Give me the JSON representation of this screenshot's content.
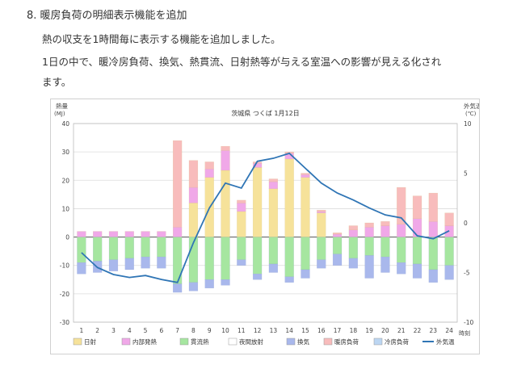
{
  "article": {
    "heading": "8. 暖房負荷の明細表示機能を追加",
    "line1": "熱の収支を1時間毎に表示する機能を追加しました。",
    "line2": "1日の中で、暖冷房負荷、換気、熱貫流、日射熱等が与える室温への影響が見える化され",
    "line3": "ます。"
  },
  "colors": {
    "日射": "#f6e29a",
    "内部発熱": "#f0a8e8",
    "貫流熱": "#a6e6a0",
    "夜間放射": "#ffffff",
    "換気": "#a9b8ec",
    "暖房負荷": "#f8bcbc",
    "冷房負荷": "#bcd6f2",
    "外気温": "#2f75b5"
  },
  "chart_data": {
    "type": "bar",
    "title": "茨城県 つくば 1月12日",
    "ylabel_left": "熱量",
    "ylabel_left_unit": "(MJ)",
    "ylabel_right": "外気温",
    "ylabel_right_unit": "(℃)",
    "xlabel": "時刻",
    "ylim_left": [
      -30,
      40
    ],
    "ylim_right": [
      -10,
      10
    ],
    "left_ticks": [
      "40",
      "30",
      "20",
      "10",
      "0",
      "-10",
      "-20",
      "-30"
    ],
    "right_ticks": [
      "10",
      "5",
      "0",
      "-5",
      "-10"
    ],
    "categories": [
      "1",
      "2",
      "3",
      "4",
      "5",
      "6",
      "7",
      "8",
      "9",
      "10",
      "11",
      "12",
      "13",
      "14",
      "15",
      "16",
      "17",
      "18",
      "19",
      "20",
      "21",
      "22",
      "23",
      "24"
    ],
    "positive_series": [
      {
        "name": "日射",
        "values": [
          0,
          0,
          0,
          0,
          0,
          0,
          0,
          12,
          21,
          23.5,
          9,
          24.5,
          17,
          27.5,
          21,
          8.5,
          0,
          0,
          0,
          0,
          0,
          0,
          0,
          0
        ]
      },
      {
        "name": "内部発熱",
        "values": [
          2,
          2,
          2,
          2,
          2,
          2,
          3.5,
          5.5,
          3,
          7,
          3,
          1.5,
          2.5,
          2,
          1,
          0.5,
          1,
          2.5,
          3.5,
          4,
          4.5,
          6.5,
          5.5,
          4
        ]
      },
      {
        "name": "暖房負荷",
        "values": [
          0,
          0,
          0,
          0,
          0,
          0,
          30.5,
          9.5,
          2.5,
          1.5,
          1,
          0.5,
          1,
          0.5,
          0.5,
          0.5,
          0.5,
          1.5,
          1.5,
          1.5,
          13,
          8,
          10,
          4.5
        ]
      }
    ],
    "negative_series": [
      {
        "name": "貫流熱",
        "values": [
          -9,
          -8.5,
          -8,
          -7.5,
          -7,
          -7,
          -16.5,
          -16,
          -15,
          -15,
          -8,
          -13,
          -9.5,
          -14,
          -11.5,
          -8,
          -6,
          -7.5,
          -6.5,
          -7,
          -9,
          -9.5,
          -11.5,
          -10
        ]
      },
      {
        "name": "換気",
        "values": [
          -4,
          -4,
          -4,
          -4,
          -4,
          -4,
          -3,
          -3,
          -3,
          -2,
          -2,
          -2,
          -3,
          -2,
          -3,
          -3,
          -4,
          -3.5,
          -8,
          -5.5,
          -4,
          -5,
          -4.5,
          -5
        ]
      }
    ],
    "line_series": {
      "name": "外気温",
      "values": [
        -3,
        -4.5,
        -5.2,
        -5.5,
        -5.3,
        -5.7,
        -6,
        -2,
        1.5,
        4,
        3.5,
        6.2,
        6.5,
        7,
        5.5,
        4,
        3,
        2.3,
        1.5,
        0.8,
        0.5,
        -1.3,
        -1.6,
        -0.8
      ]
    },
    "legend": {
      "position": "bottom",
      "items": [
        "日射",
        "内部発熱",
        "貫流熱",
        "夜間放射",
        "換気",
        "暖房負荷",
        "冷房負荷",
        "外気温"
      ]
    }
  }
}
